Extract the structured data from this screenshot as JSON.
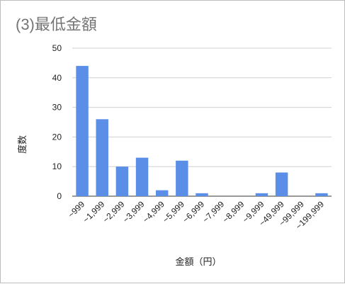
{
  "chart_data": {
    "type": "bar",
    "title": "(3)最低金額",
    "xlabel": "金額（円）",
    "ylabel": "度数",
    "categories": [
      "~999",
      "~1,999",
      "~2,999",
      "~3,999",
      "~4,999",
      "~5,999",
      "~6,999",
      "~7,999",
      "~8,999",
      "~9,999",
      "~49,999",
      "~99,999",
      "~199,999"
    ],
    "values": [
      44,
      26,
      10,
      13,
      2,
      12,
      1,
      0,
      0,
      1,
      8,
      0,
      1
    ],
    "ylim": [
      0,
      50
    ],
    "yticks": [
      0,
      10,
      20,
      30,
      40,
      50
    ],
    "grid": true,
    "bar_color": "#5b8ee6"
  }
}
